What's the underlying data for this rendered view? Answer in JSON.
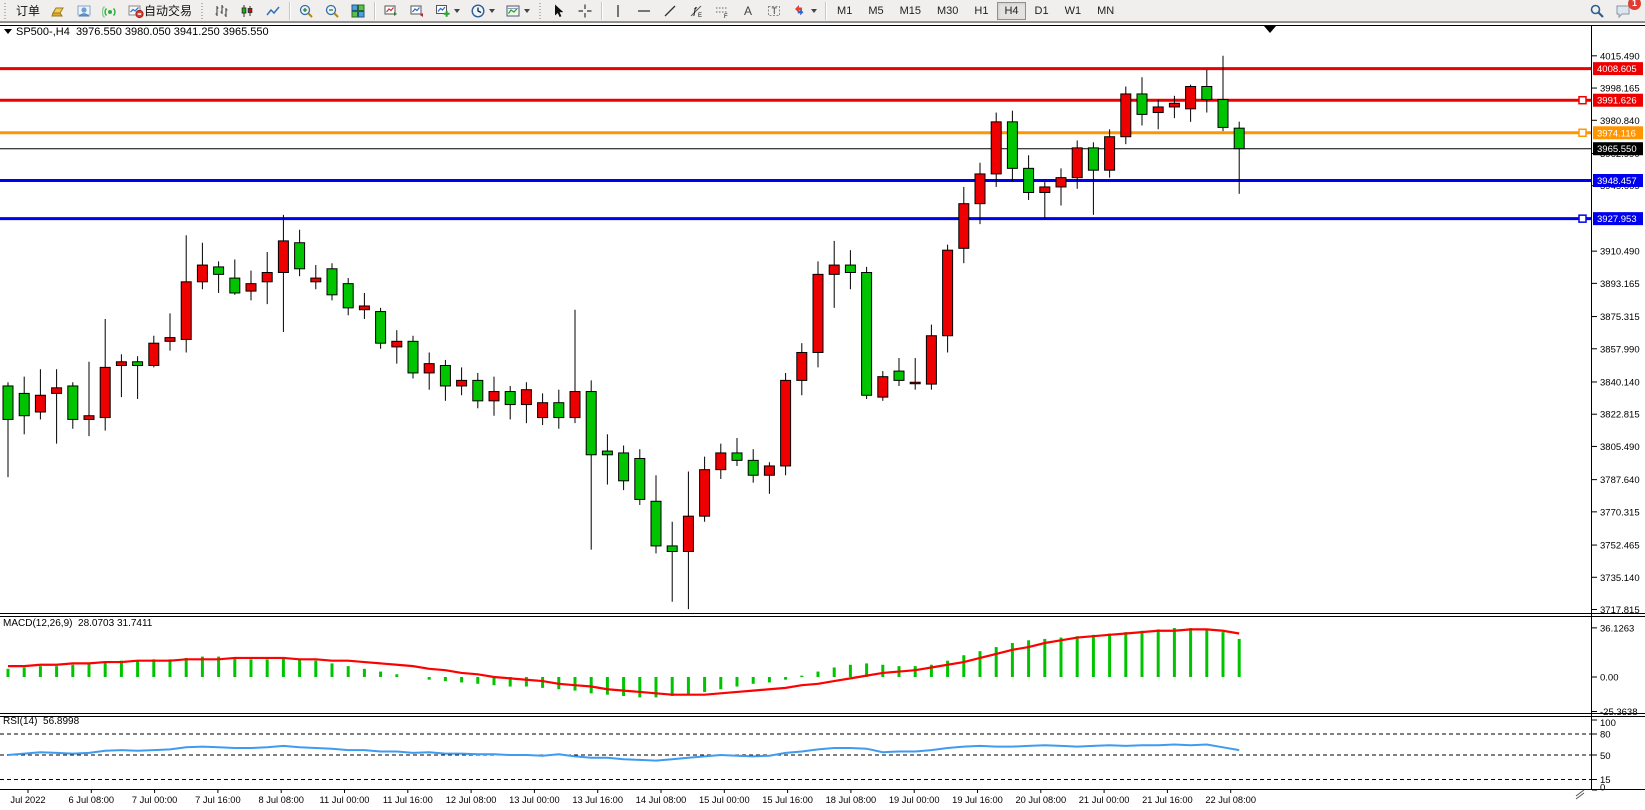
{
  "toolbar": {
    "order_label": "订单",
    "autotrading_label": "自动交易",
    "timeframes": [
      "M1",
      "M5",
      "M15",
      "M30",
      "H1",
      "H4",
      "D1",
      "W1",
      "MN"
    ],
    "active_timeframe": "H4",
    "notification_badge": "1",
    "icons": [
      "gold-ingot-icon",
      "profile-user-icon",
      "signal-icon",
      "autotrading-icon",
      "bar-chart-icon",
      "candlestick-chart-icon",
      "line-chart-icon",
      "zoom-in-icon",
      "zoom-out-icon",
      "tile-windows-icon",
      "arrange-charts-icon",
      "cascade-charts-icon",
      "new-indicator-icon",
      "periods-clock-icon",
      "template-icon",
      "cursor-icon",
      "crosshair-icon",
      "vertical-line-icon",
      "horizontal-line-icon",
      "trendline-icon",
      "fibonacci-icon",
      "channel-icon",
      "text-icon",
      "label-icon",
      "arrows-icon",
      "search-icon",
      "chat-icon",
      "pencil-icon"
    ]
  },
  "chart_header": {
    "symbol_period": "SP500-,H4",
    "ohlc": "3976.550 3980.050 3941.250 3965.550"
  },
  "indicators": {
    "macd": {
      "label": "MACD(12,26,9)",
      "values": "28.0703 31.7411",
      "scale": [
        "36.1263",
        "0.00",
        "-25.3638"
      ]
    },
    "rsi": {
      "label": "RSI(14)",
      "value": "56.8998",
      "scale": [
        "100",
        "80",
        "50",
        "15",
        "0"
      ]
    }
  },
  "price_axis": {
    "ticks": [
      "4015.490",
      "3998.165",
      "3980.840",
      "3962.990",
      "3945.665",
      "3910.490",
      "3893.165",
      "3875.315",
      "3857.990",
      "3840.140",
      "3822.815",
      "3805.490",
      "3787.640",
      "3770.315",
      "3752.465",
      "3735.140",
      "3717.815"
    ],
    "badges": [
      {
        "text": "4008.605",
        "color": "#ee0000"
      },
      {
        "text": "3991.626",
        "color": "#ee0000"
      },
      {
        "text": "3974.116",
        "color": "#ff9500"
      },
      {
        "text": "3965.550",
        "color": "#000000"
      },
      {
        "text": "3948.457",
        "color": "#0000ee"
      },
      {
        "text": "3927.953",
        "color": "#0000ee"
      }
    ]
  },
  "time_axis": {
    "labels": [
      "Jul 2022",
      "6 Jul 08:00",
      "7 Jul 00:00",
      "7 Jul 16:00",
      "8 Jul 08:00",
      "11 Jul 00:00",
      "11 Jul 16:00",
      "12 Jul 08:00",
      "13 Jul 00:00",
      "13 Jul 16:00",
      "14 Jul 08:00",
      "15 Jul 00:00",
      "15 Jul 16:00",
      "18 Jul 08:00",
      "19 Jul 00:00",
      "19 Jul 16:00",
      "20 Jul 08:00",
      "21 Jul 00:00",
      "21 Jul 16:00",
      "22 Jul 08:00"
    ]
  },
  "chart_data": {
    "type": "candlestick",
    "symbol": "SP500-",
    "period": "H4",
    "up_color": "#ee0000",
    "down_color": "#00c400",
    "macd_color": "#00c400",
    "macd_signal_color": "#ff0000",
    "rsi_color": "#3f9bf0",
    "current_price": 3965.55,
    "price_axis_range": [
      3717.815,
      4015.49
    ],
    "macd_scale_range": [
      -25.3638,
      36.1263
    ],
    "rsi_levels": [
      80,
      50,
      15
    ],
    "hlines": [
      {
        "price": 4008.605,
        "color": "#ee0000",
        "width": 3,
        "handle": false
      },
      {
        "price": 3991.626,
        "color": "#ee0000",
        "width": 3,
        "handle": true
      },
      {
        "price": 3974.116,
        "color": "#ff9500",
        "width": 3,
        "handle": true
      },
      {
        "price": 3948.457,
        "color": "#0000ee",
        "width": 3,
        "handle": false
      },
      {
        "price": 3927.953,
        "color": "#0000ee",
        "width": 3,
        "handle": true
      }
    ],
    "candles": [
      [
        3838,
        3840,
        3789,
        3820
      ],
      [
        3834,
        3843,
        3812,
        3822
      ],
      [
        3824,
        3847,
        3820,
        3833
      ],
      [
        3834,
        3847,
        3807,
        3837
      ],
      [
        3838,
        3840,
        3815,
        3820
      ],
      [
        3820,
        3851,
        3811,
        3822
      ],
      [
        3821,
        3874,
        3814,
        3848
      ],
      [
        3849,
        3855,
        3832,
        3851
      ],
      [
        3851,
        3854,
        3831,
        3849
      ],
      [
        3849,
        3865,
        3848,
        3861
      ],
      [
        3862,
        3877,
        3857,
        3864
      ],
      [
        3863,
        3919,
        3856,
        3894
      ],
      [
        3894,
        3915,
        3890,
        3903
      ],
      [
        3902,
        3905,
        3888,
        3898
      ],
      [
        3896,
        3906,
        3887,
        3888
      ],
      [
        3889,
        3900,
        3884,
        3893
      ],
      [
        3894,
        3910,
        3882,
        3899
      ],
      [
        3899,
        3930,
        3867,
        3916
      ],
      [
        3915,
        3922,
        3897,
        3901
      ],
      [
        3894,
        3903,
        3890,
        3896
      ],
      [
        3901,
        3904,
        3884,
        3887
      ],
      [
        3893,
        3896,
        3876,
        3880
      ],
      [
        3879,
        3888,
        3874,
        3881
      ],
      [
        3878,
        3880,
        3858,
        3861
      ],
      [
        3859,
        3868,
        3850,
        3862
      ],
      [
        3862,
        3865,
        3842,
        3845
      ],
      [
        3845,
        3856,
        3836,
        3850
      ],
      [
        3849,
        3852,
        3830,
        3838
      ],
      [
        3838,
        3848,
        3833,
        3841
      ],
      [
        3841,
        3845,
        3826,
        3830
      ],
      [
        3830,
        3843,
        3822,
        3835
      ],
      [
        3835,
        3838,
        3820,
        3828
      ],
      [
        3828,
        3840,
        3818,
        3836
      ],
      [
        3821,
        3834,
        3817,
        3829
      ],
      [
        3829,
        3836,
        3815,
        3821
      ],
      [
        3821,
        3879,
        3818,
        3835
      ],
      [
        3835,
        3841,
        3750,
        3801
      ],
      [
        3803,
        3812,
        3785,
        3801
      ],
      [
        3802,
        3806,
        3782,
        3787
      ],
      [
        3799,
        3804,
        3774,
        3777
      ],
      [
        3776,
        3790,
        3748,
        3752
      ],
      [
        3752,
        3765,
        3722,
        3749
      ],
      [
        3749,
        3792,
        3718,
        3768
      ],
      [
        3768,
        3800,
        3765,
        3793
      ],
      [
        3793,
        3807,
        3788,
        3802
      ],
      [
        3802,
        3810,
        3795,
        3798
      ],
      [
        3798,
        3804,
        3786,
        3790
      ],
      [
        3790,
        3797,
        3780,
        3795
      ],
      [
        3795,
        3845,
        3790,
        3841
      ],
      [
        3841,
        3861,
        3833,
        3856
      ],
      [
        3856,
        3905,
        3848,
        3898
      ],
      [
        3898,
        3916,
        3880,
        3903
      ],
      [
        3903,
        3911,
        3890,
        3899
      ],
      [
        3899,
        3902,
        3831,
        3833
      ],
      [
        3832,
        3846,
        3830,
        3843
      ],
      [
        3846,
        3853,
        3838,
        3841
      ],
      [
        3840,
        3853,
        3836,
        3840
      ],
      [
        3839,
        3871,
        3836,
        3865
      ],
      [
        3865,
        3914,
        3856,
        3911
      ],
      [
        3912,
        3945,
        3904,
        3936
      ],
      [
        3936,
        3958,
        3925,
        3952
      ],
      [
        3952,
        3985,
        3945,
        3980
      ],
      [
        3980,
        3986,
        3948,
        3955
      ],
      [
        3955,
        3962,
        3938,
        3942
      ],
      [
        3942,
        3948,
        3928,
        3945
      ],
      [
        3945,
        3955,
        3935,
        3950
      ],
      [
        3950,
        3970,
        3944,
        3966
      ],
      [
        3966,
        3969,
        3930,
        3954
      ],
      [
        3954,
        3976,
        3950,
        3972
      ],
      [
        3972,
        3999,
        3968,
        3995
      ],
      [
        3995,
        4004,
        3978,
        3984
      ],
      [
        3985,
        3992,
        3976,
        3988
      ],
      [
        3988,
        3994,
        3982,
        3990
      ],
      [
        3987,
        4000,
        3980,
        3999
      ],
      [
        3999,
        4008,
        3985,
        3992
      ],
      [
        3992,
        4015.5,
        3975,
        3977
      ],
      [
        3976.6,
        3980.1,
        3941.3,
        3965.6
      ]
    ],
    "macd_histogram": [
      6,
      7,
      8,
      8,
      9,
      10,
      11,
      12,
      12,
      13,
      13,
      14,
      15,
      15,
      14,
      13,
      13,
      14,
      13,
      12,
      10,
      8,
      6,
      4,
      2,
      0,
      -2,
      -3,
      -4,
      -5,
      -6,
      -7,
      -7,
      -8,
      -9,
      -10,
      -12,
      -13,
      -14,
      -15,
      -15,
      -14,
      -13,
      -11,
      -9,
      -7,
      -5,
      -4,
      -2,
      1,
      4,
      7,
      9,
      10,
      9,
      8,
      8,
      9,
      12,
      16,
      19,
      22,
      25,
      27,
      28,
      29,
      30,
      31,
      32,
      33,
      34,
      35,
      36,
      36,
      35,
      33,
      28
    ],
    "macd_signal": [
      8,
      8,
      9,
      9,
      10,
      10,
      11,
      11,
      12,
      12,
      12,
      13,
      13,
      13,
      14,
      14,
      14,
      14,
      13,
      13,
      12,
      12,
      11,
      10,
      9,
      8,
      6,
      5,
      3,
      2,
      0,
      -1,
      -2,
      -3,
      -5,
      -6,
      -7,
      -9,
      -10,
      -11,
      -12,
      -13,
      -13,
      -13,
      -12,
      -11,
      -10,
      -9,
      -8,
      -6,
      -5,
      -3,
      -1,
      1,
      3,
      4,
      5,
      7,
      9,
      11,
      14,
      17,
      20,
      22,
      25,
      27,
      29,
      30,
      31,
      32,
      33,
      34,
      34,
      35,
      35,
      34,
      32
    ],
    "rsi": [
      50,
      52,
      54,
      53,
      52,
      53,
      56,
      57,
      56,
      57,
      58,
      61,
      62,
      61,
      60,
      60,
      61,
      63,
      61,
      60,
      59,
      57,
      57,
      55,
      55,
      53,
      54,
      52,
      52,
      51,
      51,
      50,
      50,
      49,
      51,
      48,
      46,
      46,
      44,
      43,
      42,
      44,
      46,
      48,
      50,
      49,
      48,
      49,
      53,
      55,
      58,
      60,
      60,
      59,
      54,
      55,
      55,
      57,
      60,
      62,
      63,
      62,
      62,
      63,
      64,
      63,
      62,
      63,
      64,
      63,
      64,
      64,
      65,
      64,
      65,
      61,
      57
    ]
  }
}
